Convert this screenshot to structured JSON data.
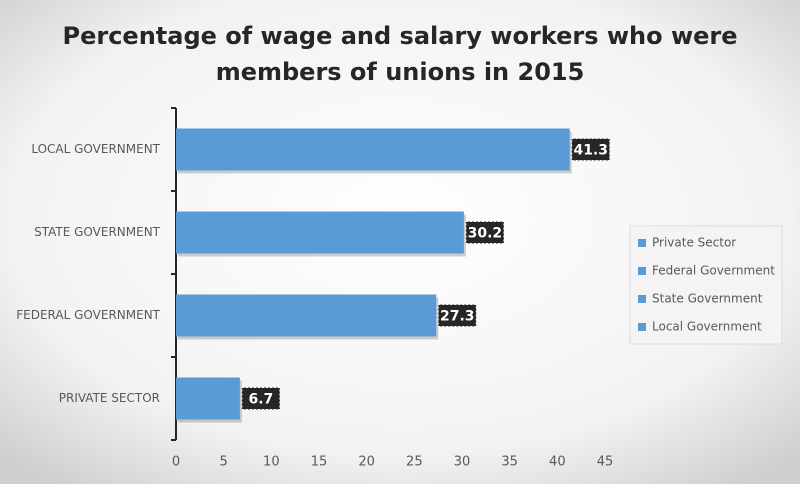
{
  "chart_data": {
    "type": "bar",
    "orientation": "horizontal",
    "title": [
      "Percentage of wage and salary workers who were",
      "members of unions in 2015"
    ],
    "categories": [
      "LOCAL GOVERNMENT",
      "STATE GOVERNMENT",
      "FEDERAL GOVERNMENT",
      "PRIVATE SECTOR"
    ],
    "values": [
      41.3,
      30.2,
      27.3,
      6.7
    ],
    "color": "#5b9bd5",
    "xlim": [
      0,
      45
    ],
    "xticks": [
      0,
      5,
      10,
      15,
      20,
      25,
      30,
      35,
      40,
      45
    ],
    "grid": false,
    "legend_position": "right",
    "legend_entries": [
      "Private Sector",
      "Federal Government",
      "State Government",
      "Local Government"
    ]
  }
}
